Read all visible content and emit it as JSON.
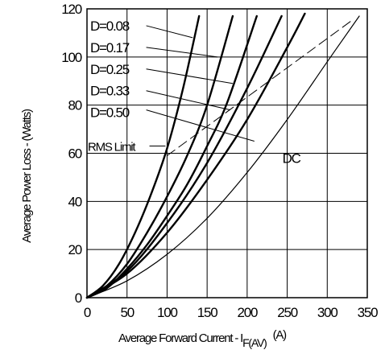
{
  "chart_data": {
    "type": "line",
    "xlabel_main": "Average Forward Current - I",
    "xlabel_sub": "F(AV)",
    "xlabel_unit": "(A)",
    "ylabel": "Average Power Loss - (Watts)",
    "xlim": [
      0,
      350
    ],
    "ylim": [
      0,
      120
    ],
    "xticks": [
      0,
      50,
      100,
      150,
      200,
      250,
      300,
      350
    ],
    "yticks": [
      0,
      20,
      40,
      60,
      80,
      100,
      120
    ],
    "grid": true,
    "series": [
      {
        "name": "D=0.08",
        "x": [
          0,
          20,
          40,
          60,
          80,
          100,
          120,
          140
        ],
        "y": [
          0,
          5,
          14,
          27,
          43,
          62,
          87,
          117
        ]
      },
      {
        "name": "D=0.17",
        "x": [
          0,
          25,
          50,
          75,
          100,
          125,
          150,
          182
        ],
        "y": [
          0,
          5,
          14,
          27,
          42,
          59,
          80,
          117
        ]
      },
      {
        "name": "D=0.25",
        "x": [
          0,
          25,
          50,
          75,
          100,
          125,
          150,
          175,
          212
        ],
        "y": [
          0,
          4,
          12,
          22,
          34,
          47,
          63,
          81,
          117
        ]
      },
      {
        "name": "D=0.33",
        "x": [
          0,
          50,
          100,
          150,
          200,
          243
        ],
        "y": [
          0,
          11,
          31,
          56,
          87,
          117
        ]
      },
      {
        "name": "D=0.50",
        "x": [
          0,
          50,
          100,
          150,
          200,
          250,
          272
        ],
        "y": [
          0,
          10,
          27,
          49,
          74,
          104,
          118
        ]
      },
      {
        "name": "DC",
        "x": [
          0,
          50,
          100,
          150,
          200,
          250,
          300,
          340
        ],
        "y": [
          0,
          7,
          18,
          33,
          52,
          74,
          98,
          117
        ]
      },
      {
        "name": "RMS Limit",
        "dashed": true,
        "x": [
          100,
          150,
          200,
          250,
          300,
          330
        ],
        "y": [
          59,
          72,
          84,
          95,
          107,
          115
        ]
      }
    ],
    "annotations": [
      {
        "text": "D=0.08",
        "series": "D=0.08",
        "x": 4,
        "y": 113,
        "lx1": 74,
        "ly1": 113,
        "lx2": 132,
        "ly2": 108
      },
      {
        "text": "D=0.17",
        "series": "D=0.17",
        "x": 4,
        "y": 104,
        "lx1": 74,
        "ly1": 104,
        "lx2": 163,
        "ly2": 100
      },
      {
        "text": "D=0.25",
        "series": "D=0.25",
        "x": 4,
        "y": 95,
        "lx1": 74,
        "ly1": 95,
        "lx2": 182,
        "ly2": 89
      },
      {
        "text": "D=0.33",
        "series": "D=0.33",
        "x": 4,
        "y": 86,
        "lx1": 74,
        "ly1": 86,
        "lx2": 179,
        "ly2": 78
      },
      {
        "text": "D=0.50",
        "series": "D=0.50",
        "x": 4,
        "y": 77,
        "lx1": 74,
        "ly1": 78,
        "lx2": 209,
        "ly2": 65
      },
      {
        "text": "RMS Limit",
        "series": "RMS Limit",
        "x": 1,
        "y": 63,
        "small": true,
        "lx1": 78,
        "ly1": 63,
        "lx2": 98,
        "ly2": 63
      },
      {
        "text": "DC",
        "series": "DC",
        "x": 244,
        "y": 58
      }
    ]
  }
}
